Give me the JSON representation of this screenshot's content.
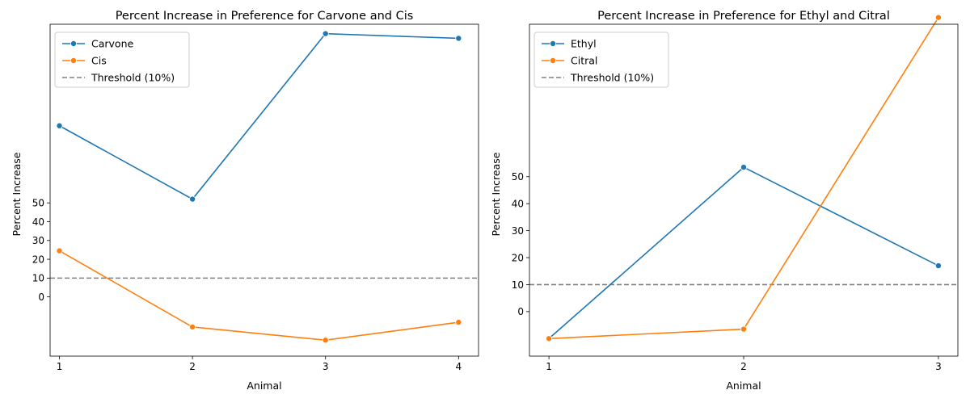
{
  "chart_data": [
    {
      "type": "line",
      "title": "Percent Increase in Preference for Carvone and Cis",
      "xlabel": "Animal",
      "ylabel": "Percent Increase",
      "x": [
        1,
        2,
        3,
        4
      ],
      "x_ticks": [
        "1",
        "2",
        "3",
        "4"
      ],
      "y_ticks": [
        "0",
        "10",
        "20",
        "30",
        "40",
        "50"
      ],
      "y_tick_values": [
        0,
        10,
        20,
        30,
        40,
        50
      ],
      "xlim": [
        0.93,
        4.15
      ],
      "ylim": [
        -31.5,
        145
      ],
      "series": [
        {
          "name": "Carvone",
          "color": "#1f77b4",
          "values": [
            91,
            52,
            140,
            137.5
          ]
        },
        {
          "name": "Cis",
          "color": "#ff7f0e",
          "values": [
            24.5,
            -16,
            -23,
            -13.5
          ]
        }
      ],
      "threshold": {
        "label": "Threshold (10%)",
        "value": 10,
        "color": "#808080"
      },
      "legend_position": "top-left",
      "grid": false
    },
    {
      "type": "line",
      "title": "Percent Increase in Preference for Ethyl and Citral",
      "xlabel": "Animal",
      "ylabel": "Percent Increase",
      "x": [
        1,
        2,
        3
      ],
      "x_ticks": [
        "1",
        "2",
        "3"
      ],
      "y_ticks": [
        "0",
        "10",
        "20",
        "30",
        "40",
        "50"
      ],
      "y_tick_values": [
        0,
        10,
        20,
        30,
        40,
        50
      ],
      "xlim": [
        0.9,
        3.1
      ],
      "ylim": [
        -16.5,
        106.5
      ],
      "series": [
        {
          "name": "Ethyl",
          "color": "#1f77b4",
          "values": [
            -10,
            53.5,
            17
          ]
        },
        {
          "name": "Citral",
          "color": "#ff7f0e",
          "values": [
            -10,
            -6.5,
            109
          ]
        }
      ],
      "threshold": {
        "label": "Threshold (10%)",
        "value": 10,
        "color": "#808080"
      },
      "legend_position": "top-left",
      "grid": false
    }
  ]
}
